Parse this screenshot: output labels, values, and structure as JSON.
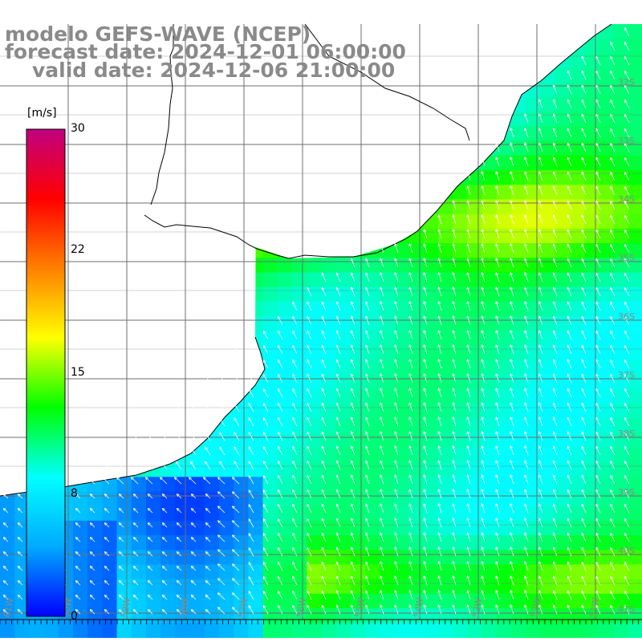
{
  "title": {
    "model": "modelo GEFS-WAVE (NCEP)",
    "forecast": "forecast date: 2024-12-01 06:00:00",
    "valid": "valid date: 2024-12-06 21:00:00"
  },
  "colorbar": {
    "unit": "[m/s]",
    "ticks": [
      "30",
      "22",
      "15",
      "8",
      "0"
    ],
    "tick_values": [
      30,
      22,
      15,
      8,
      0
    ],
    "range": [
      0,
      30
    ],
    "colors": [
      "#0000ff",
      "#00aaff",
      "#00ffff",
      "#00ff00",
      "#ffff00",
      "#ff8000",
      "#ff0000",
      "#c00080"
    ]
  },
  "map": {
    "lat_labels": [
      "32S",
      "33S",
      "34S",
      "35S",
      "36S",
      "37S",
      "38S",
      "39S",
      "40S",
      "41S"
    ],
    "lon_labels": [
      "61W",
      "60W",
      "59W",
      "58W",
      "57W",
      "56W",
      "55W",
      "54W",
      "53W",
      "52W",
      "51W"
    ],
    "grid_color": "#6e6e6e",
    "land_color": "#ffffff",
    "arrow_color": "#ffffff"
  }
}
